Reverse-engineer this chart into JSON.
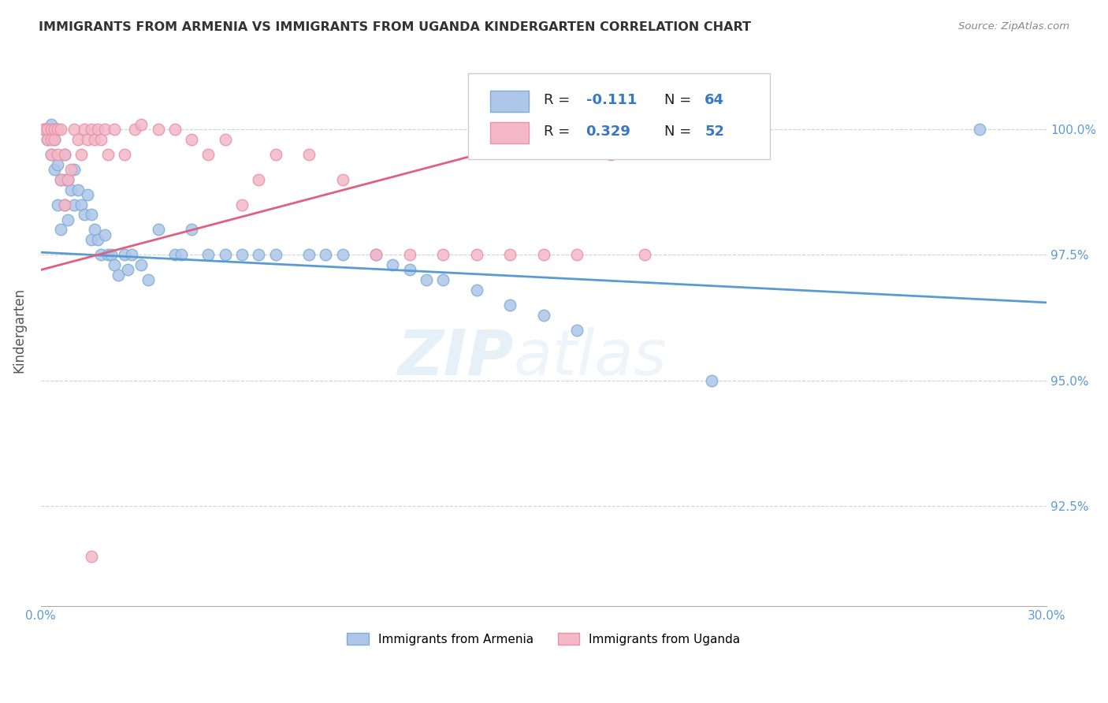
{
  "title": "IMMIGRANTS FROM ARMENIA VS IMMIGRANTS FROM UGANDA KINDERGARTEN CORRELATION CHART",
  "source": "Source: ZipAtlas.com",
  "ylabel": "Kindergarten",
  "x_min": 0.0,
  "x_max": 0.3,
  "y_min": 90.5,
  "y_max": 101.5,
  "x_ticks": [
    0.0,
    0.05,
    0.1,
    0.15,
    0.2,
    0.25,
    0.3
  ],
  "x_tick_labels": [
    "0.0%",
    "",
    "",
    "",
    "",
    "",
    "30.0%"
  ],
  "y_ticks": [
    92.5,
    95.0,
    97.5,
    100.0
  ],
  "y_tick_labels": [
    "92.5%",
    "95.0%",
    "97.5%",
    "100.0%"
  ],
  "armenia_color": "#aec6e8",
  "uganda_color": "#f4b8c8",
  "armenia_edge": "#7bafd4",
  "uganda_edge": "#e891a8",
  "trend_armenia_color": "#5b9bd5",
  "trend_uganda_color": "#e06080",
  "marker_size": 110,
  "armenia_R": -0.111,
  "armenia_N": 64,
  "uganda_R": 0.329,
  "uganda_N": 52,
  "armenia_trend_x0": 0.0,
  "armenia_trend_y0": 97.55,
  "armenia_trend_x1": 0.3,
  "armenia_trend_y1": 96.55,
  "uganda_trend_x0": 0.0,
  "uganda_trend_y0": 97.2,
  "uganda_trend_x1": 0.17,
  "uganda_trend_y1": 100.2,
  "armenia_points": [
    [
      0.001,
      100.0
    ],
    [
      0.002,
      100.0
    ],
    [
      0.002,
      99.8
    ],
    [
      0.003,
      100.0
    ],
    [
      0.003,
      99.5
    ],
    [
      0.003,
      100.1
    ],
    [
      0.004,
      99.8
    ],
    [
      0.004,
      99.2
    ],
    [
      0.004,
      100.0
    ],
    [
      0.005,
      100.0
    ],
    [
      0.005,
      99.3
    ],
    [
      0.005,
      98.5
    ],
    [
      0.006,
      99.0
    ],
    [
      0.006,
      98.0
    ],
    [
      0.007,
      99.5
    ],
    [
      0.007,
      99.0
    ],
    [
      0.007,
      98.5
    ],
    [
      0.008,
      99.0
    ],
    [
      0.008,
      98.2
    ],
    [
      0.009,
      98.8
    ],
    [
      0.01,
      99.2
    ],
    [
      0.01,
      98.5
    ],
    [
      0.011,
      98.8
    ],
    [
      0.012,
      98.5
    ],
    [
      0.013,
      98.3
    ],
    [
      0.014,
      98.7
    ],
    [
      0.015,
      98.3
    ],
    [
      0.015,
      97.8
    ],
    [
      0.016,
      98.0
    ],
    [
      0.017,
      97.8
    ],
    [
      0.018,
      97.5
    ],
    [
      0.019,
      97.9
    ],
    [
      0.02,
      97.5
    ],
    [
      0.021,
      97.5
    ],
    [
      0.022,
      97.3
    ],
    [
      0.023,
      97.1
    ],
    [
      0.025,
      97.5
    ],
    [
      0.026,
      97.2
    ],
    [
      0.027,
      97.5
    ],
    [
      0.03,
      97.3
    ],
    [
      0.032,
      97.0
    ],
    [
      0.035,
      98.0
    ],
    [
      0.04,
      97.5
    ],
    [
      0.042,
      97.5
    ],
    [
      0.045,
      98.0
    ],
    [
      0.05,
      97.5
    ],
    [
      0.055,
      97.5
    ],
    [
      0.06,
      97.5
    ],
    [
      0.065,
      97.5
    ],
    [
      0.07,
      97.5
    ],
    [
      0.08,
      97.5
    ],
    [
      0.085,
      97.5
    ],
    [
      0.09,
      97.5
    ],
    [
      0.1,
      97.5
    ],
    [
      0.105,
      97.3
    ],
    [
      0.11,
      97.2
    ],
    [
      0.115,
      97.0
    ],
    [
      0.12,
      97.0
    ],
    [
      0.13,
      96.8
    ],
    [
      0.14,
      96.5
    ],
    [
      0.15,
      96.3
    ],
    [
      0.16,
      96.0
    ],
    [
      0.2,
      95.0
    ],
    [
      0.28,
      100.0
    ]
  ],
  "uganda_points": [
    [
      0.001,
      100.0
    ],
    [
      0.001,
      100.0
    ],
    [
      0.002,
      100.0
    ],
    [
      0.002,
      99.8
    ],
    [
      0.003,
      100.0
    ],
    [
      0.003,
      99.8
    ],
    [
      0.003,
      99.5
    ],
    [
      0.004,
      100.0
    ],
    [
      0.004,
      99.8
    ],
    [
      0.005,
      100.0
    ],
    [
      0.005,
      99.5
    ],
    [
      0.006,
      100.0
    ],
    [
      0.006,
      99.0
    ],
    [
      0.007,
      99.5
    ],
    [
      0.007,
      98.5
    ],
    [
      0.008,
      99.0
    ],
    [
      0.009,
      99.2
    ],
    [
      0.01,
      100.0
    ],
    [
      0.011,
      99.8
    ],
    [
      0.012,
      99.5
    ],
    [
      0.013,
      100.0
    ],
    [
      0.014,
      99.8
    ],
    [
      0.015,
      100.0
    ],
    [
      0.016,
      99.8
    ],
    [
      0.017,
      100.0
    ],
    [
      0.018,
      99.8
    ],
    [
      0.019,
      100.0
    ],
    [
      0.02,
      99.5
    ],
    [
      0.022,
      100.0
    ],
    [
      0.025,
      99.5
    ],
    [
      0.028,
      100.0
    ],
    [
      0.03,
      100.1
    ],
    [
      0.035,
      100.0
    ],
    [
      0.04,
      100.0
    ],
    [
      0.045,
      99.8
    ],
    [
      0.05,
      99.5
    ],
    [
      0.055,
      99.8
    ],
    [
      0.06,
      98.5
    ],
    [
      0.065,
      99.0
    ],
    [
      0.07,
      99.5
    ],
    [
      0.08,
      99.5
    ],
    [
      0.09,
      99.0
    ],
    [
      0.1,
      97.5
    ],
    [
      0.11,
      97.5
    ],
    [
      0.12,
      97.5
    ],
    [
      0.13,
      97.5
    ],
    [
      0.14,
      97.5
    ],
    [
      0.15,
      97.5
    ],
    [
      0.16,
      97.5
    ],
    [
      0.17,
      99.5
    ],
    [
      0.18,
      97.5
    ],
    [
      0.015,
      91.5
    ]
  ],
  "watermark_zip": "ZIP",
  "watermark_atlas": "atlas",
  "background_color": "#ffffff",
  "grid_color": "#cccccc",
  "title_color": "#333333",
  "tick_label_color": "#5b9bd5",
  "bottom_legend": [
    {
      "label": "Immigrants from Armenia",
      "color": "#aec6e8",
      "edge": "#7bafd4"
    },
    {
      "label": "Immigrants from Uganda",
      "color": "#f4b8c8",
      "edge": "#e891a8"
    }
  ]
}
